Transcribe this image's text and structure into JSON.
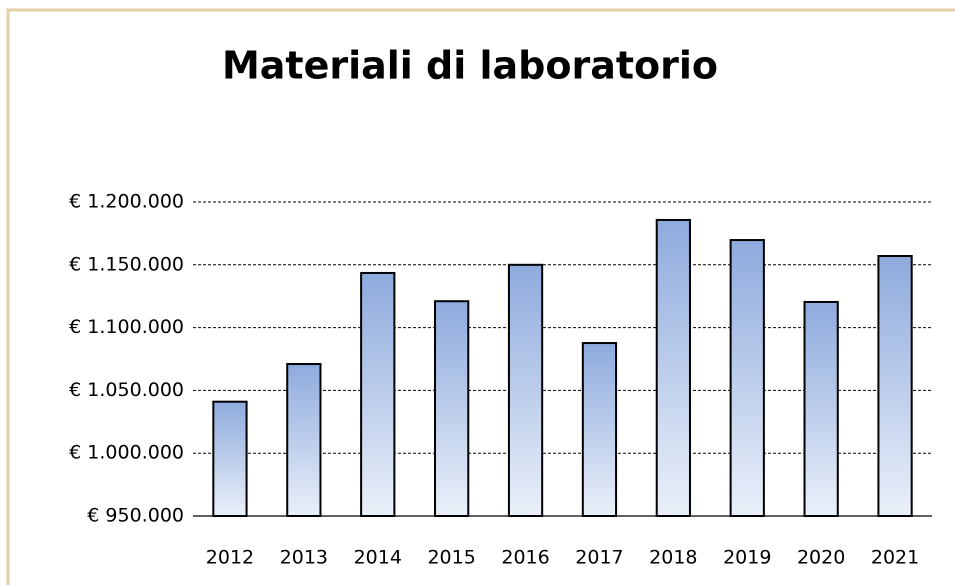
{
  "chart_data": {
    "type": "bar",
    "title": "Materiali di laboratorio",
    "categories": [
      "2012",
      "2013",
      "2014",
      "2015",
      "2016",
      "2017",
      "2018",
      "2019",
      "2020",
      "2021"
    ],
    "values": [
      1041000,
      1071000,
      1143500,
      1121000,
      1150000,
      1087700,
      1185700,
      1169700,
      1120400,
      1157000
    ],
    "colors": [
      "#8eaadd",
      "#eaf0f9"
    ],
    "ylim": [
      950000,
      1200000
    ],
    "yticks": [
      {
        "value": 950000,
        "label": "€ 950.000"
      },
      {
        "value": 1000000,
        "label": "€ 1.000.000"
      },
      {
        "value": 1050000,
        "label": "€ 1.050.000"
      },
      {
        "value": 1100000,
        "label": "€ 1.100.000"
      },
      {
        "value": 1150000,
        "label": "€ 1.150.000"
      },
      {
        "value": 1200000,
        "label": "€ 1.200.000"
      }
    ],
    "grid": true
  }
}
